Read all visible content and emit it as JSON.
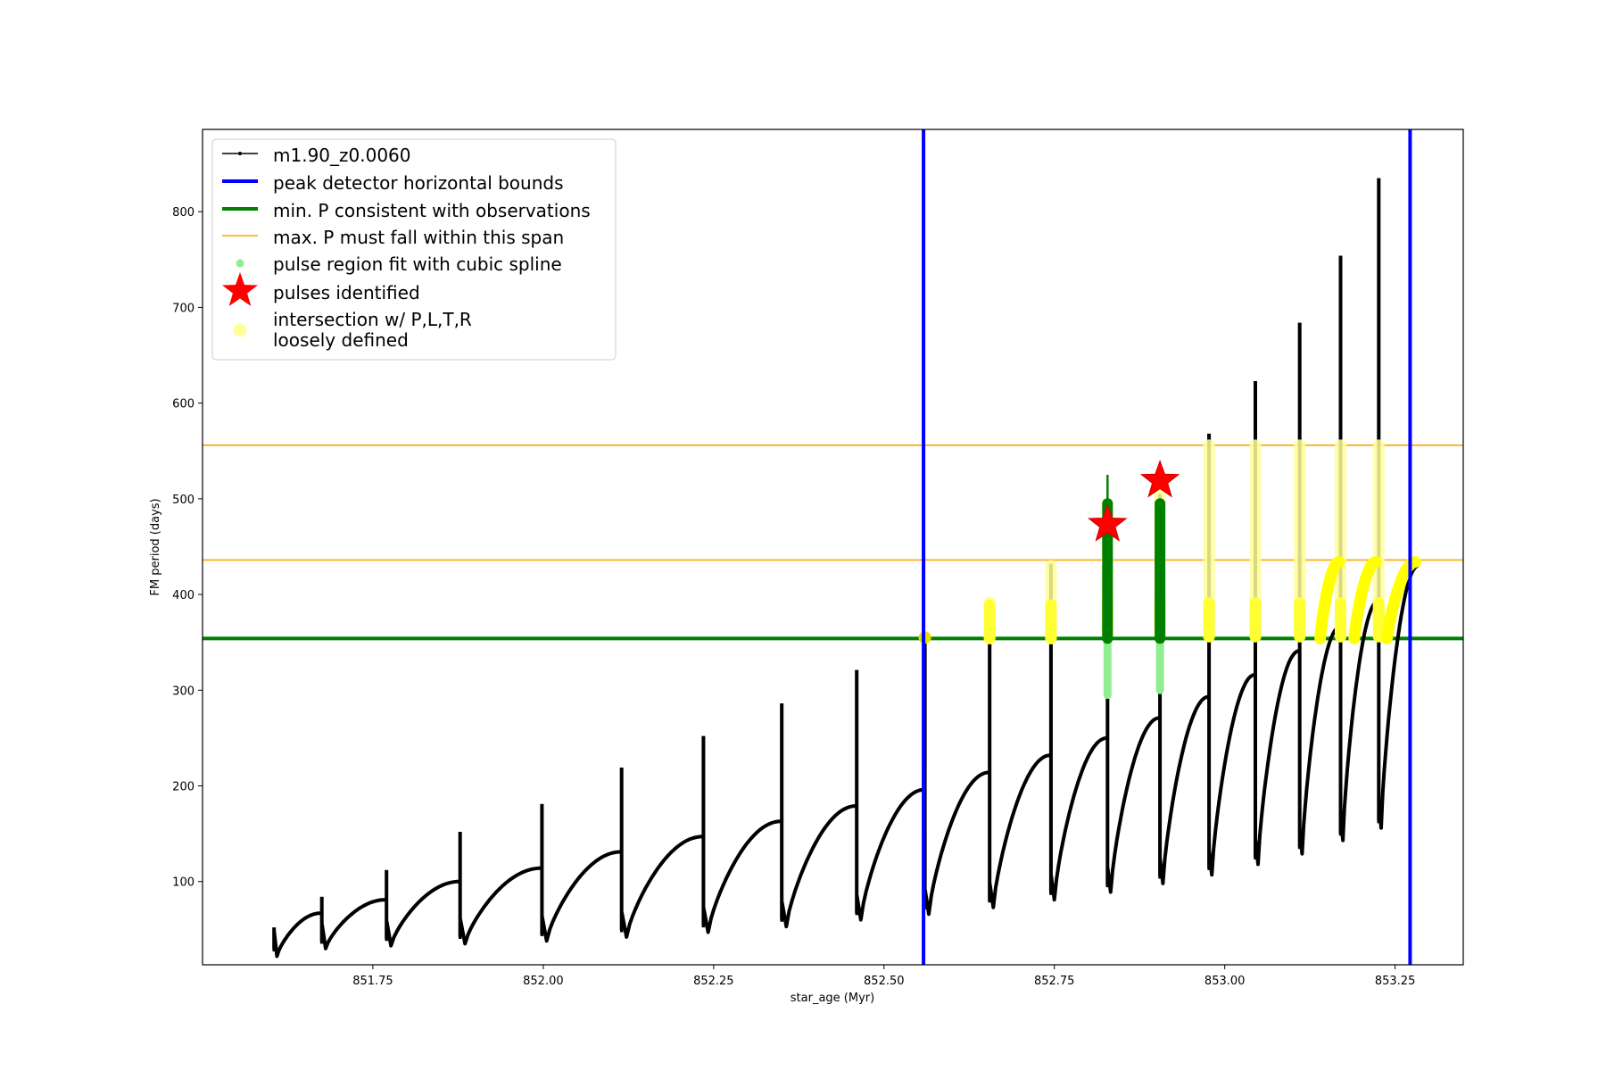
{
  "chart_data": {
    "type": "line",
    "xlabel": "star_age (Myr)",
    "ylabel": "FM period (days)",
    "xlim": [
      851.5,
      853.35
    ],
    "ylim": [
      13,
      886
    ],
    "x_ticks": [
      851.75,
      852.0,
      852.25,
      852.5,
      852.75,
      853.0,
      853.25
    ],
    "x_tick_labels": [
      "851.75",
      "852.00",
      "852.25",
      "852.50",
      "852.75",
      "853.00",
      "853.25"
    ],
    "y_ticks": [
      100,
      200,
      300,
      400,
      500,
      600,
      700,
      800
    ],
    "y_tick_labels": [
      "100",
      "200",
      "300",
      "400",
      "500",
      "600",
      "700",
      "800"
    ],
    "grid": false,
    "legend_position": "top-left",
    "legend": [
      {
        "label": "m1.90_z0.0060",
        "marker": "line-dot",
        "color": "#000000"
      },
      {
        "label": "peak detector horizontal bounds",
        "marker": "thick-line",
        "color": "#0000ff"
      },
      {
        "label": "min. P consistent with observations",
        "marker": "thick-line",
        "color": "#008000"
      },
      {
        "label": "max. P must fall within this span",
        "marker": "thin-line",
        "color": "#ffa500"
      },
      {
        "label": "pulse region fit with cubic spline",
        "marker": "dot",
        "color": "#90ee90"
      },
      {
        "label": "pulses identified",
        "marker": "star",
        "color": "#ff0000"
      },
      {
        "label": "intersection w/ P,L,T,R",
        "label2": "loosely defined",
        "marker": "circle",
        "color": "#ffff99"
      }
    ],
    "series_track": {
      "name": "m1.90_z0.0060",
      "color": "#000000",
      "pulses": [
        {
          "age": 851.605,
          "start": 22,
          "end": 67,
          "spike": 52
        },
        {
          "age": 851.675,
          "start": 30,
          "end": 81,
          "spike": 84
        },
        {
          "age": 851.77,
          "start": 33,
          "end": 100,
          "spike": 112
        },
        {
          "age": 851.878,
          "start": 35,
          "end": 114,
          "spike": 152
        },
        {
          "age": 851.998,
          "start": 38,
          "end": 131,
          "spike": 181
        },
        {
          "age": 852.115,
          "start": 42,
          "end": 147,
          "spike": 219
        },
        {
          "age": 852.235,
          "start": 47,
          "end": 163,
          "spike": 252
        },
        {
          "age": 852.35,
          "start": 53,
          "end": 179,
          "spike": 286
        },
        {
          "age": 852.46,
          "start": 60,
          "end": 196,
          "spike": 321
        },
        {
          "age": 852.56,
          "start": 66,
          "end": 214,
          "spike": 356
        },
        {
          "age": 852.655,
          "start": 73,
          "end": 232,
          "spike": 393
        },
        {
          "age": 852.745,
          "start": 81,
          "end": 250,
          "spike": 432
        },
        {
          "age": 852.828,
          "start": 89,
          "end": 271,
          "spike": 496
        },
        {
          "age": 852.905,
          "start": 98,
          "end": 293,
          "spike": 505
        },
        {
          "age": 852.977,
          "start": 107,
          "end": 316,
          "spike": 568
        },
        {
          "age": 853.045,
          "start": 118,
          "end": 341,
          "spike": 623
        },
        {
          "age": 853.11,
          "start": 129,
          "end": 366,
          "spike": 684
        },
        {
          "age": 853.17,
          "start": 143,
          "end": 393,
          "spike": 754
        },
        {
          "age": 853.226,
          "start": 156,
          "end": 430,
          "spike": 835
        }
      ],
      "final_age": 853.285
    },
    "bounds_vertical": {
      "color": "#0000ff",
      "x": [
        852.558,
        853.272
      ]
    },
    "min_period": {
      "color": "#008000",
      "y": 354
    },
    "max_period_span": {
      "color": "#ffa500",
      "y": [
        436,
        556
      ]
    },
    "spline_regions": [
      {
        "age": 852.828,
        "from": 295,
        "to": 495
      },
      {
        "age": 852.905,
        "from": 300,
        "to": 495
      }
    ],
    "fit_segments": [
      {
        "age": 852.828,
        "from": 354,
        "to": 525
      },
      {
        "age": 852.905,
        "from": 354,
        "to": 497
      }
    ],
    "pulses_identified": [
      {
        "age": 852.828,
        "period": 473
      },
      {
        "age": 852.905,
        "period": 519
      }
    ],
    "intersections_vertical": [
      {
        "age": 852.655,
        "from": 354,
        "to": 392
      },
      {
        "age": 852.745,
        "from": 354,
        "to": 430
      },
      {
        "age": 852.828,
        "from": 360,
        "to": 495
      },
      {
        "age": 852.905,
        "from": 360,
        "to": 515
      },
      {
        "age": 852.977,
        "from": 356,
        "to": 556
      },
      {
        "age": 853.045,
        "from": 356,
        "to": 556
      },
      {
        "age": 853.11,
        "from": 356,
        "to": 556
      },
      {
        "age": 853.17,
        "from": 356,
        "to": 556
      },
      {
        "age": 853.226,
        "from": 356,
        "to": 556
      }
    ],
    "intersections_point": [
      {
        "age": 852.56,
        "period": 355
      }
    ],
    "intersections_curves": [
      {
        "from_age": 853.14,
        "to_age": 853.168
      },
      {
        "from_age": 853.19,
        "to_age": 853.222
      },
      {
        "from_age": 853.238,
        "to_age": 853.28
      }
    ]
  }
}
